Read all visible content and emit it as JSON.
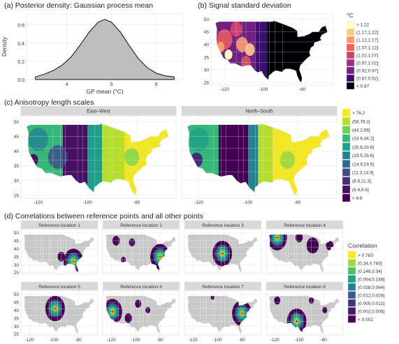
{
  "panels": {
    "a_title": "(a) Posterior density: Gaussian process mean",
    "b_title": "(b) Signal standard deviation",
    "c_title": "(c) Anisotropy length scales",
    "d_title": "(d) Correlations between reference points and all other points"
  },
  "chart_data": [
    {
      "type": "area",
      "id": "a",
      "title": "(a) Posterior density: Gaussian process mean",
      "xlabel": "GP mean (°C)",
      "ylabel": "Density",
      "xlim": [
        3.1,
        6.6
      ],
      "ylim": [
        0,
        0.72
      ],
      "x_ticks": [
        "4",
        "5",
        "6"
      ],
      "y_ticks": [
        "0.0",
        "0.2",
        "0.4",
        "0.6"
      ],
      "x": [
        3.3,
        3.5,
        3.7,
        3.9,
        4.1,
        4.3,
        4.5,
        4.7,
        4.85,
        5.0,
        5.2,
        5.4,
        5.6,
        5.8,
        6.0,
        6.2,
        6.4
      ],
      "y": [
        0.03,
        0.06,
        0.1,
        0.16,
        0.25,
        0.38,
        0.52,
        0.63,
        0.66,
        0.63,
        0.52,
        0.37,
        0.23,
        0.13,
        0.07,
        0.04,
        0.03
      ],
      "fill": "#bdbdbd"
    },
    {
      "type": "heatmap",
      "id": "b",
      "title": "(b) Signal standard deviation",
      "legend_title": "°C",
      "legend": [
        "> 1.22",
        "(1.17,1.22]",
        "(1.12,1.17]",
        "(1.07,1.12]",
        "(1.02,1.07]",
        "(0.97,1.02]",
        "(0.92,0.97]",
        "(0.87,0.92]",
        "< 0.87"
      ],
      "legend_colors": [
        "#fcfdbf",
        "#fdc98c",
        "#fd9b6b",
        "#f1605d",
        "#cd4071",
        "#9e2f7f",
        "#721f81",
        "#3b0f70",
        "#000004"
      ],
      "x_ticks": [
        "-120",
        "-100",
        "-80"
      ],
      "y_ticks": [
        "25",
        "30",
        "35",
        "40",
        "45",
        "50"
      ]
    },
    {
      "type": "heatmap",
      "id": "c",
      "title": "(c) Anisotropy length scales",
      "facets": [
        "East–West",
        "North–South"
      ],
      "legend": [
        "> 76.2",
        "(58,76.2]",
        "(44.2,58]",
        "(33.6,44.2]",
        "(25.6,33.6]",
        "(19.5,25.6]",
        "(14.9,19.5]",
        "(11.3,14.9]",
        "(8.6,11.3]",
        "(6.6,8.6]",
        "< 6.6"
      ],
      "legend_colors": [
        "#fde725",
        "#b5de2b",
        "#6ece58",
        "#35b779",
        "#1f9e89",
        "#26828e",
        "#31688e",
        "#3e4989",
        "#482878",
        "#471063",
        "#440154"
      ],
      "x_ticks": [
        "-120",
        "-100",
        "-80"
      ],
      "y_ticks": [
        "25",
        "30",
        "35",
        "40",
        "45",
        "50"
      ]
    },
    {
      "type": "heatmap",
      "id": "d",
      "title": "(d) Correlations between reference points and all other points",
      "legend_title": "Correlation",
      "facets": [
        "Reference location 1",
        "Reference location 2",
        "Reference location 3",
        "Reference location 4",
        "Reference location 5",
        "Reference location 6",
        "Reference location 7",
        "Reference location 8"
      ],
      "legend": [
        "> 0.783",
        "(0.34,0.783]",
        "(0.148,0.34]",
        "(0.064,0.148]",
        "(0.028,0.064]",
        "(0.012,0.028]",
        "(0.005,0.012]",
        "(0.002,0.005]",
        "< 0.002"
      ],
      "legend_colors": [
        "#fde725",
        "#a0da39",
        "#4ac16d",
        "#1fa187",
        "#277f8e",
        "#365c8d",
        "#46327e",
        "#471a6a",
        "#440154"
      ],
      "x_ticks": [
        "-120",
        "-100",
        "-80"
      ],
      "y_ticks": [
        "25",
        "30",
        "35",
        "40",
        "45",
        "50"
      ]
    }
  ]
}
